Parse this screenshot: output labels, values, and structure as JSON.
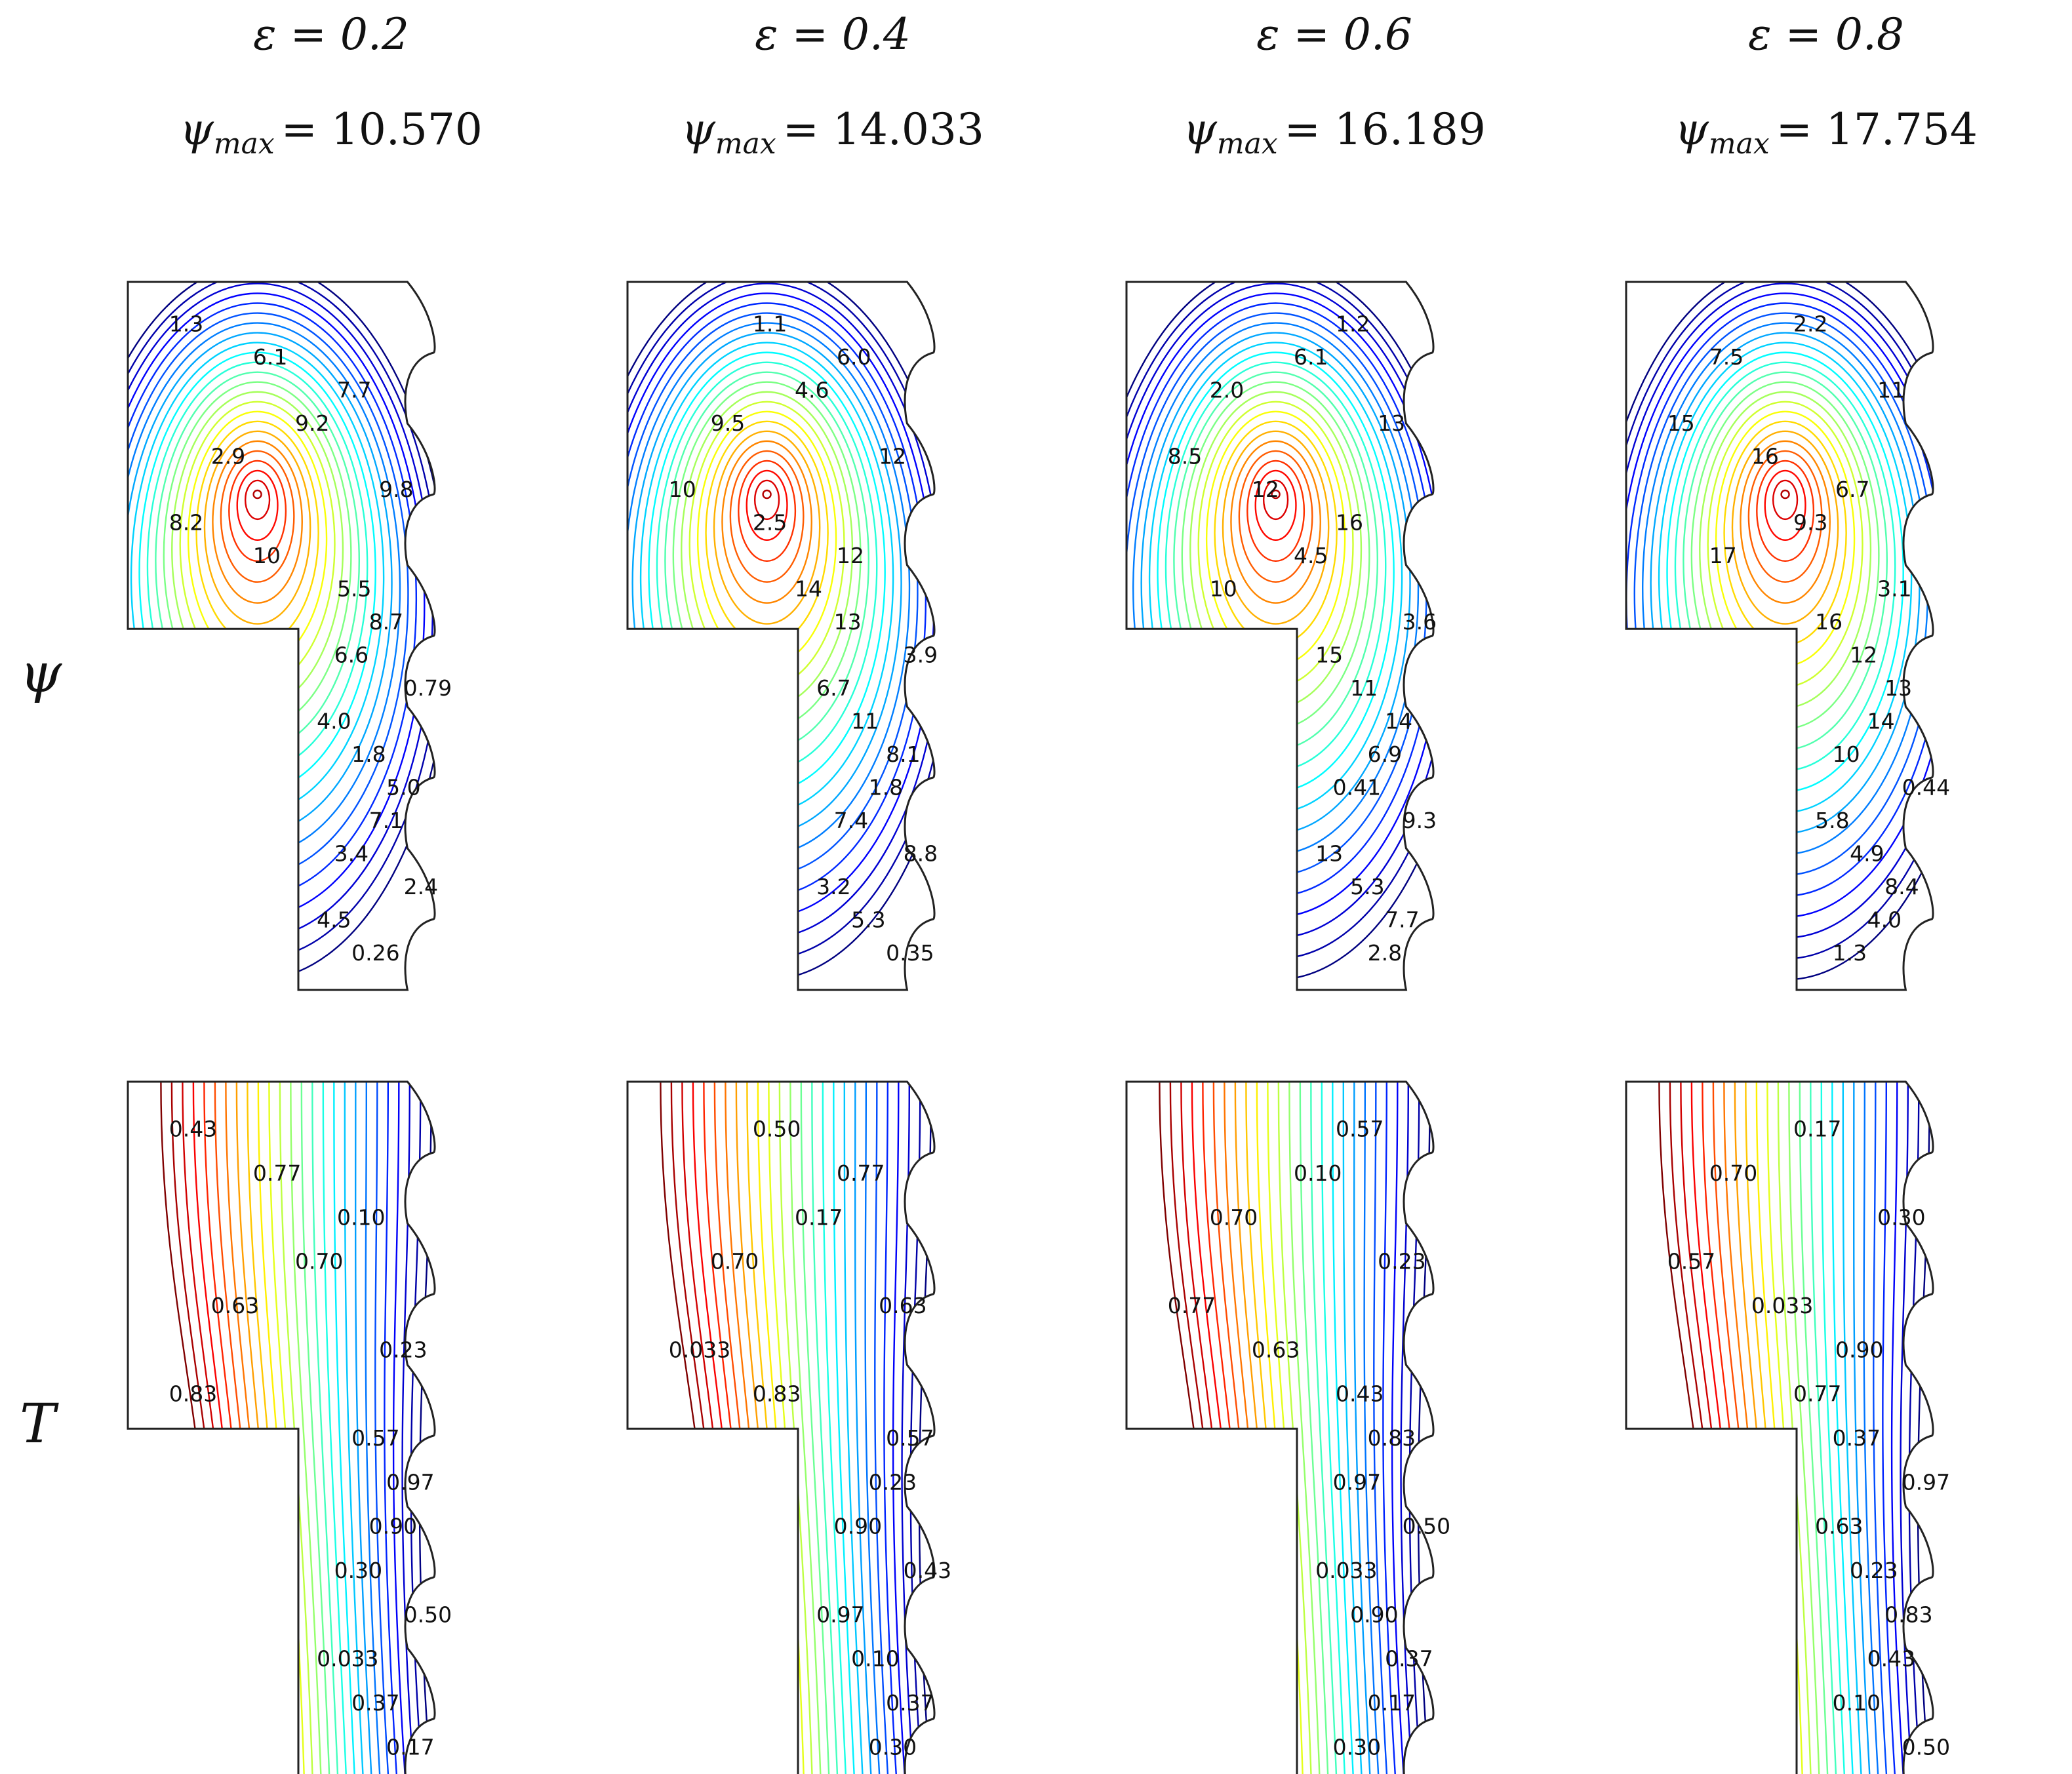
{
  "row_labels": {
    "psi": "ψ",
    "T": "T"
  },
  "panels": [
    {
      "eps_label": "ε = 0.2",
      "psi_max_label": "ψ",
      "psi_max_sub": "max",
      "psi_max_value": "= 10.570",
      "psi_labels": [
        "1.3",
        "6.1",
        "7.7",
        "9.2",
        "2.9",
        "9.8",
        "8.2",
        "10",
        "5.5",
        "8.7",
        "6.6",
        "0.79",
        "4.0",
        "1.8",
        "5.0",
        "7.1",
        "3.4",
        "2.4",
        "4.5",
        "0.26"
      ],
      "t_labels": [
        "0.43",
        "0.77",
        "0.10",
        "0.70",
        "0.63",
        "0.23",
        "0.83",
        "0.57",
        "0.97",
        "0.90",
        "0.30",
        "0.50",
        "0.033",
        "0.37",
        "0.17"
      ]
    },
    {
      "eps_label": "ε = 0.4",
      "psi_max_label": "ψ",
      "psi_max_sub": "max",
      "psi_max_value": "= 14.033",
      "psi_labels": [
        "1.1",
        "6.0",
        "4.6",
        "9.5",
        "12",
        "10",
        "2.5",
        "12",
        "14",
        "13",
        "3.9",
        "6.7",
        "11",
        "8.1",
        "1.8",
        "7.4",
        "8.8",
        "3.2",
        "5.3",
        "0.35"
      ],
      "t_labels": [
        "0.50",
        "0.77",
        "0.17",
        "0.70",
        "0.63",
        "0.033",
        "0.83",
        "0.57",
        "0.23",
        "0.90",
        "0.43",
        "0.97",
        "0.10",
        "0.37",
        "0.30"
      ]
    },
    {
      "eps_label": "ε = 0.6",
      "psi_max_label": "ψ",
      "psi_max_sub": "max",
      "psi_max_value": "= 16.189",
      "psi_labels": [
        "1.2",
        "6.1",
        "2.0",
        "13",
        "8.5",
        "12",
        "16",
        "4.5",
        "10",
        "3.6",
        "15",
        "11",
        "14",
        "6.9",
        "0.41",
        "9.3",
        "13",
        "5.3",
        "7.7",
        "2.8"
      ],
      "t_labels": [
        "0.57",
        "0.10",
        "0.70",
        "0.23",
        "0.77",
        "0.63",
        "0.43",
        "0.83",
        "0.97",
        "0.50",
        "0.033",
        "0.90",
        "0.37",
        "0.17",
        "0.30"
      ]
    },
    {
      "eps_label": "ε = 0.8",
      "psi_max_label": "ψ",
      "psi_max_sub": "max",
      "psi_max_value": "= 17.754",
      "psi_labels": [
        "2.2",
        "7.5",
        "11",
        "15",
        "16",
        "6.7",
        "9.3",
        "17",
        "3.1",
        "16",
        "12",
        "13",
        "14",
        "10",
        "0.44",
        "5.8",
        "4.9",
        "8.4",
        "4.0",
        "1.3"
      ],
      "t_labels": [
        "0.17",
        "0.70",
        "0.30",
        "0.57",
        "0.033",
        "0.90",
        "0.77",
        "0.37",
        "0.97",
        "0.63",
        "0.23",
        "0.83",
        "0.43",
        "0.10",
        "0.50"
      ]
    }
  ]
}
